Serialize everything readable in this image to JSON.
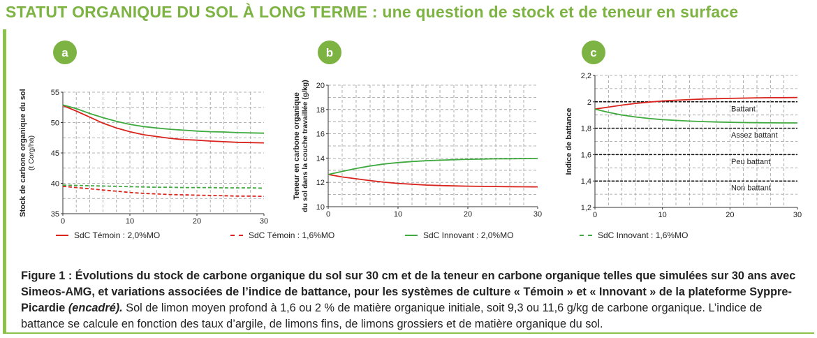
{
  "title": "STATUT ORGANIQUE DU SOL À LONG TERME : une question de stock et de teneur en surface",
  "colors": {
    "title": "#7cb342",
    "frame": "#8bc34a",
    "badge": "#7cb342",
    "red": "#d9231d",
    "green": "#3faa3f",
    "grid": "#9a9a9a"
  },
  "legend": [
    {
      "label": "SdC Témoin : 2,0%MO",
      "color": "#d9231d",
      "dash": false
    },
    {
      "label": "SdC Témoin : 1,6%MO",
      "color": "#d9231d",
      "dash": true
    },
    {
      "label": "SdC Innovant : 2,0%MO",
      "color": "#3faa3f",
      "dash": false
    },
    {
      "label": "SdC Innovant : 1,6%MO",
      "color": "#3faa3f",
      "dash": true
    }
  ],
  "chart_data": [
    {
      "id": "a",
      "badge": "a",
      "type": "line",
      "ylabel_lines": [
        "Stock de carbone organique du sol",
        "(t Corg/ha)"
      ],
      "xlim": [
        0,
        30
      ],
      "ylim": [
        35,
        55
      ],
      "xticks": [
        0,
        10,
        20,
        30
      ],
      "yticks": [
        35,
        40,
        45,
        50,
        55
      ],
      "ytick_labels": [
        "35",
        "40",
        "45",
        "50",
        "55"
      ],
      "grid": "dashed",
      "series": [
        {
          "legend": 0,
          "color": "#d9231d",
          "dash": false,
          "x": [
            0,
            2,
            4,
            6,
            8,
            10,
            12,
            14,
            16,
            18,
            20,
            22,
            24,
            26,
            28,
            30
          ],
          "y": [
            52.8,
            51.9,
            50.9,
            49.9,
            49.1,
            48.5,
            48.0,
            47.7,
            47.4,
            47.2,
            47.1,
            46.95,
            46.85,
            46.75,
            46.7,
            46.65
          ]
        },
        {
          "legend": 1,
          "color": "#d9231d",
          "dash": true,
          "x": [
            0,
            2,
            4,
            6,
            8,
            10,
            12,
            14,
            16,
            18,
            20,
            22,
            24,
            26,
            28,
            30
          ],
          "y": [
            39.5,
            39.3,
            39.1,
            38.9,
            38.7,
            38.5,
            38.35,
            38.25,
            38.15,
            38.1,
            38.05,
            38.0,
            37.95,
            37.9,
            37.9,
            37.85
          ]
        },
        {
          "legend": 2,
          "color": "#3faa3f",
          "dash": false,
          "x": [
            0,
            2,
            4,
            6,
            8,
            10,
            12,
            14,
            16,
            18,
            20,
            22,
            24,
            26,
            28,
            30
          ],
          "y": [
            52.9,
            52.3,
            51.5,
            50.8,
            50.2,
            49.7,
            49.35,
            49.1,
            48.9,
            48.75,
            48.6,
            48.5,
            48.45,
            48.35,
            48.3,
            48.25
          ]
        },
        {
          "legend": 3,
          "color": "#3faa3f",
          "dash": true,
          "x": [
            0,
            2,
            4,
            6,
            8,
            10,
            12,
            14,
            16,
            18,
            20,
            22,
            24,
            26,
            28,
            30
          ],
          "y": [
            39.7,
            39.65,
            39.6,
            39.55,
            39.5,
            39.45,
            39.4,
            39.35,
            39.35,
            39.3,
            39.3,
            39.3,
            39.25,
            39.25,
            39.25,
            39.2
          ]
        }
      ]
    },
    {
      "id": "b",
      "badge": "b",
      "type": "line",
      "ylabel_lines": [
        "Teneur en carbone organique",
        "du sol dans la couche travaillée (g/kg)"
      ],
      "xlim": [
        0,
        30
      ],
      "ylim": [
        10,
        20
      ],
      "xticks": [
        0,
        10,
        20,
        30
      ],
      "yticks": [
        10,
        12,
        14,
        16,
        18,
        20
      ],
      "ytick_labels": [
        "10",
        "12",
        "14",
        "16",
        "18",
        "20"
      ],
      "grid": "dashed",
      "series": [
        {
          "legend": 0,
          "color": "#d9231d",
          "dash": false,
          "x": [
            0,
            2,
            4,
            6,
            8,
            10,
            12,
            14,
            16,
            18,
            20,
            22,
            24,
            26,
            28,
            30
          ],
          "y": [
            12.65,
            12.45,
            12.3,
            12.15,
            12.02,
            11.92,
            11.85,
            11.78,
            11.74,
            11.71,
            11.69,
            11.67,
            11.66,
            11.65,
            11.64,
            11.63
          ]
        },
        {
          "legend": 2,
          "color": "#3faa3f",
          "dash": false,
          "x": [
            0,
            2,
            4,
            6,
            8,
            10,
            12,
            14,
            16,
            18,
            20,
            22,
            24,
            26,
            28,
            30
          ],
          "y": [
            12.65,
            12.9,
            13.15,
            13.35,
            13.52,
            13.63,
            13.72,
            13.78,
            13.83,
            13.87,
            13.9,
            13.92,
            13.94,
            13.95,
            13.96,
            13.97
          ]
        }
      ]
    },
    {
      "id": "c",
      "badge": "c",
      "type": "line",
      "ylabel_lines": [
        "Indice de battance"
      ],
      "xlim": [
        0,
        30
      ],
      "ylim": [
        1.2,
        2.2
      ],
      "xticks": [
        0,
        10,
        20,
        30
      ],
      "yticks": [
        1.2,
        1.4,
        1.6,
        1.8,
        2.0,
        2.2
      ],
      "ytick_labels": [
        "1,2",
        "1,4",
        "1,6",
        "1,8",
        "2",
        "2,2"
      ],
      "grid": "dashed",
      "thresholds": [
        2.0,
        1.8,
        1.6,
        1.4
      ],
      "zones": [
        {
          "label": "Battant",
          "y": 1.95
        },
        {
          "label": "Assez battant",
          "y": 1.75
        },
        {
          "label": "Peu battant",
          "y": 1.55
        },
        {
          "label": "Non battant",
          "y": 1.35
        }
      ],
      "series": [
        {
          "legend": 0,
          "color": "#d9231d",
          "dash": false,
          "x": [
            0,
            2,
            4,
            6,
            8,
            10,
            12,
            14,
            16,
            18,
            20,
            22,
            24,
            26,
            28,
            30
          ],
          "y": [
            1.945,
            1.96,
            1.975,
            1.988,
            1.998,
            2.006,
            2.012,
            2.017,
            2.021,
            2.024,
            2.026,
            2.028,
            2.03,
            2.031,
            2.032,
            2.033
          ]
        },
        {
          "legend": 2,
          "color": "#3faa3f",
          "dash": false,
          "x": [
            0,
            2,
            4,
            6,
            8,
            10,
            12,
            14,
            16,
            18,
            20,
            22,
            24,
            26,
            28,
            30
          ],
          "y": [
            1.945,
            1.92,
            1.9,
            1.885,
            1.874,
            1.865,
            1.859,
            1.854,
            1.85,
            1.847,
            1.845,
            1.843,
            1.842,
            1.841,
            1.84,
            1.84
          ]
        }
      ]
    }
  ],
  "caption": {
    "bold": "Figure 1  : Évolutions du stock de carbone organique du sol sur 30 cm et de la teneur en carbone organique telles que simulées sur 30 ans avec Simeos-AMG, et variations associées de l’indice de battance, pour les systèmes de culture « Témoin » et « Innovant » de la plateforme Syppre-Picardie ",
    "italic": "(encadré).",
    "normal": " Sol de limon moyen profond à 1,6 ou 2 % de matière organique initiale, soit 9,3 ou 11,6 g/kg de carbone organique. L’indice de battance se calcule en fonction des taux d’argile, de limons fins, de limons grossiers et de matière organique du sol."
  }
}
